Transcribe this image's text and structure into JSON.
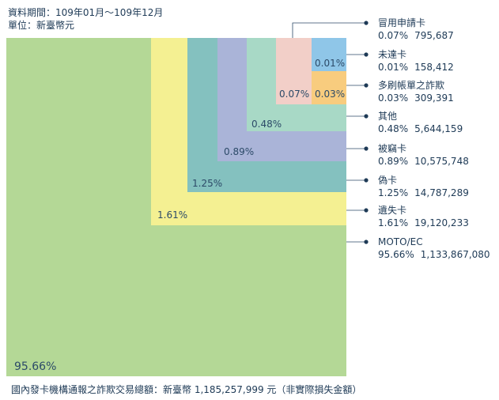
{
  "header": {
    "period": "資料期間：109年01月～109年12月",
    "unit": "單位：新臺幣元"
  },
  "footer": {
    "note": "國內發卡機構通報之詐欺交易總額：新臺幣 1,185,257,999 元（非實際損失金額）"
  },
  "chart_data": {
    "type": "treemap",
    "total_amount": 1185257999,
    "series": [
      {
        "name": "冒用申請卡",
        "percent_label": "0.07%",
        "amount_label": "795,687",
        "percent": 0.07,
        "amount": 795687,
        "color": "#f2cfc8",
        "box_label": "0.07%"
      },
      {
        "name": "未達卡",
        "percent_label": "0.01%",
        "amount_label": "158,412",
        "percent": 0.01,
        "amount": 158412,
        "color": "#8fc6e8",
        "box_label": "0.01%"
      },
      {
        "name": "多刷帳單之詐欺",
        "percent_label": "0.03%",
        "amount_label": "309,391",
        "percent": 0.03,
        "amount": 309391,
        "color": "#f8cc7e",
        "box_label": "0.03%"
      },
      {
        "name": "其他",
        "percent_label": "0.48%",
        "amount_label": "5,644,159",
        "percent": 0.48,
        "amount": 5644159,
        "color": "#a8d9c6",
        "box_label": "0.48%"
      },
      {
        "name": "被竊卡",
        "percent_label": "0.89%",
        "amount_label": "10,575,748",
        "percent": 0.89,
        "amount": 10575748,
        "color": "#aab4d8",
        "box_label": "0.89%"
      },
      {
        "name": "偽卡",
        "percent_label": "1.25%",
        "amount_label": "14,787,289",
        "percent": 1.25,
        "amount": 14787289,
        "color": "#84c1bf",
        "box_label": "1.25%"
      },
      {
        "name": "遺失卡",
        "percent_label": "1.61%",
        "amount_label": "19,120,233",
        "percent": 1.61,
        "amount": 19120233,
        "color": "#f4f092",
        "box_label": "1.61%"
      },
      {
        "name": "MOTO/EC",
        "percent_label": "95.66%",
        "amount_label": "1,133,867,080",
        "percent": 95.66,
        "amount": 1133867080,
        "color": "#b4d896",
        "box_label": "95.66%"
      }
    ],
    "marker_color": "#1e3a56"
  }
}
